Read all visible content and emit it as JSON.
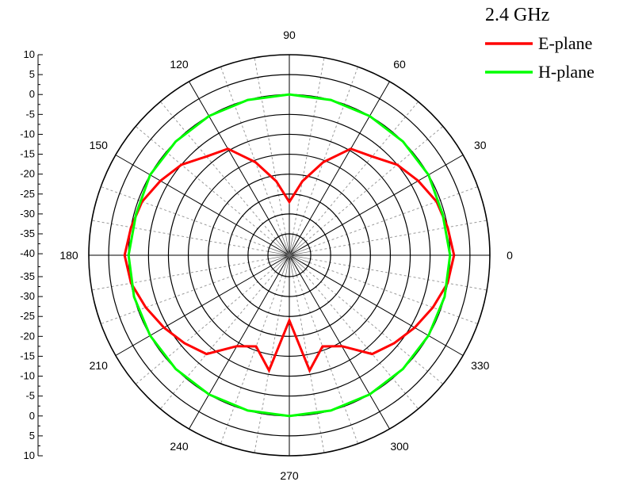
{
  "chart_data": {
    "type": "polar-line",
    "title": "",
    "angle_unit": "degrees",
    "angular_ticks": [
      0,
      30,
      60,
      90,
      120,
      150,
      180,
      210,
      240,
      270,
      300,
      330
    ],
    "radial_axis_ticks_upper": [
      "10",
      "5",
      "0",
      "-5",
      "-10",
      "-15",
      "-20",
      "-25",
      "-30",
      "-35",
      "-40"
    ],
    "radial_axis_ticks_lower": [
      "-35",
      "-30",
      "-25",
      "-20",
      "-15",
      "-10",
      "-5",
      "0",
      "5",
      "10"
    ],
    "radial_range": [
      -40,
      10
    ],
    "radial_circles": [
      -35,
      -30,
      -25,
      -20,
      -15,
      -10,
      -5,
      0,
      5,
      10
    ],
    "grid": true,
    "legend": {
      "title": "2.4 GHz",
      "placement": "top-right",
      "entries": [
        {
          "label": "E-plane",
          "color": "#ff0000"
        },
        {
          "label": "H-plane",
          "color": "#00ff00"
        }
      ]
    },
    "series": [
      {
        "name": "E-plane",
        "color": "#ff0000",
        "points": [
          [
            0,
            1
          ],
          [
            10,
            0
          ],
          [
            20,
            -1
          ],
          [
            30,
            -3
          ],
          [
            40,
            -5
          ],
          [
            50,
            -8
          ],
          [
            60,
            -9.5
          ],
          [
            70,
            -15.5
          ],
          [
            80,
            -21.5
          ],
          [
            90,
            -27
          ],
          [
            100,
            -21.5
          ],
          [
            110,
            -15.5
          ],
          [
            120,
            -9.5
          ],
          [
            130,
            -8
          ],
          [
            140,
            -5
          ],
          [
            150,
            -3
          ],
          [
            160,
            -1
          ],
          [
            170,
            0
          ],
          [
            180,
            1
          ],
          [
            190,
            0
          ],
          [
            200,
            -2
          ],
          [
            210,
            -4
          ],
          [
            220,
            -6
          ],
          [
            230,
            -8
          ],
          [
            240,
            -14
          ],
          [
            250,
            -16
          ],
          [
            260,
            -11
          ],
          [
            270,
            -24
          ],
          [
            280,
            -11
          ],
          [
            290,
            -16
          ],
          [
            300,
            -14
          ],
          [
            310,
            -8
          ],
          [
            320,
            -6
          ],
          [
            330,
            -4
          ],
          [
            340,
            -2
          ],
          [
            350,
            0
          ],
          [
            360,
            1
          ]
        ]
      },
      {
        "name": "H-plane",
        "color": "#00ff00",
        "points": [
          [
            0,
            0
          ],
          [
            15,
            -0.5
          ],
          [
            30,
            0
          ],
          [
            45,
            0
          ],
          [
            60,
            0
          ],
          [
            75,
            0
          ],
          [
            90,
            0
          ],
          [
            105,
            0
          ],
          [
            120,
            0
          ],
          [
            135,
            0
          ],
          [
            150,
            0
          ],
          [
            165,
            -0.5
          ],
          [
            180,
            0
          ],
          [
            195,
            0
          ],
          [
            210,
            0
          ],
          [
            225,
            0
          ],
          [
            240,
            0
          ],
          [
            255,
            0
          ],
          [
            270,
            0
          ],
          [
            285,
            0
          ],
          [
            300,
            0
          ],
          [
            315,
            0
          ],
          [
            330,
            0
          ],
          [
            345,
            0
          ],
          [
            360,
            0
          ]
        ]
      }
    ]
  }
}
